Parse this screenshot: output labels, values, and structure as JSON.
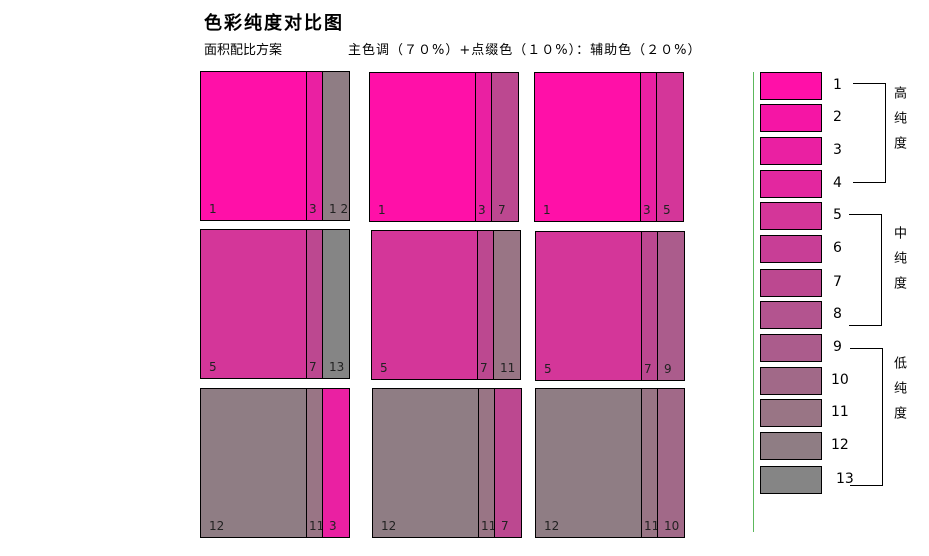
{
  "title": "色彩纯度对比图",
  "subtitle_left": "面积配比方案",
  "subtitle_right": "主色调（７０%）+点缀色（１０%）：辅助色（２０%）",
  "colors": {
    "1": "#ff10a8",
    "2": "#f515a5",
    "3": "#ea20a2",
    "4": "#e3279f",
    "5": "#d43699",
    "6": "#c83e96",
    "7": "#bc4890",
    "8": "#b3548f",
    "9": "#ab5c8c",
    "10": "#a16988",
    "11": "#997585",
    "12": "#8f7d84",
    "13": "#858585"
  },
  "panels": [
    [
      "1",
      "3",
      "1 2"
    ],
    [
      "1",
      "3",
      "7"
    ],
    [
      "1",
      "3",
      "5"
    ],
    [
      "5",
      "7",
      "13"
    ],
    [
      "5",
      "7",
      "11"
    ],
    [
      "5",
      "7",
      "9"
    ],
    [
      "12",
      "11",
      "3"
    ],
    [
      "12",
      "11",
      "7"
    ],
    [
      "12",
      "11",
      "10"
    ]
  ],
  "legend": [
    "1",
    "2",
    "3",
    "4",
    "5",
    "6",
    "7",
    "8",
    "9",
    "10",
    "11",
    "12",
    "13"
  ],
  "groups": [
    {
      "label": "高纯度",
      "chars": [
        "高",
        "纯",
        "度"
      ]
    },
    {
      "label": "中纯度",
      "chars": [
        "中",
        "纯",
        "度"
      ]
    },
    {
      "label": "低纯度",
      "chars": [
        "低",
        "纯",
        "度"
      ]
    }
  ]
}
